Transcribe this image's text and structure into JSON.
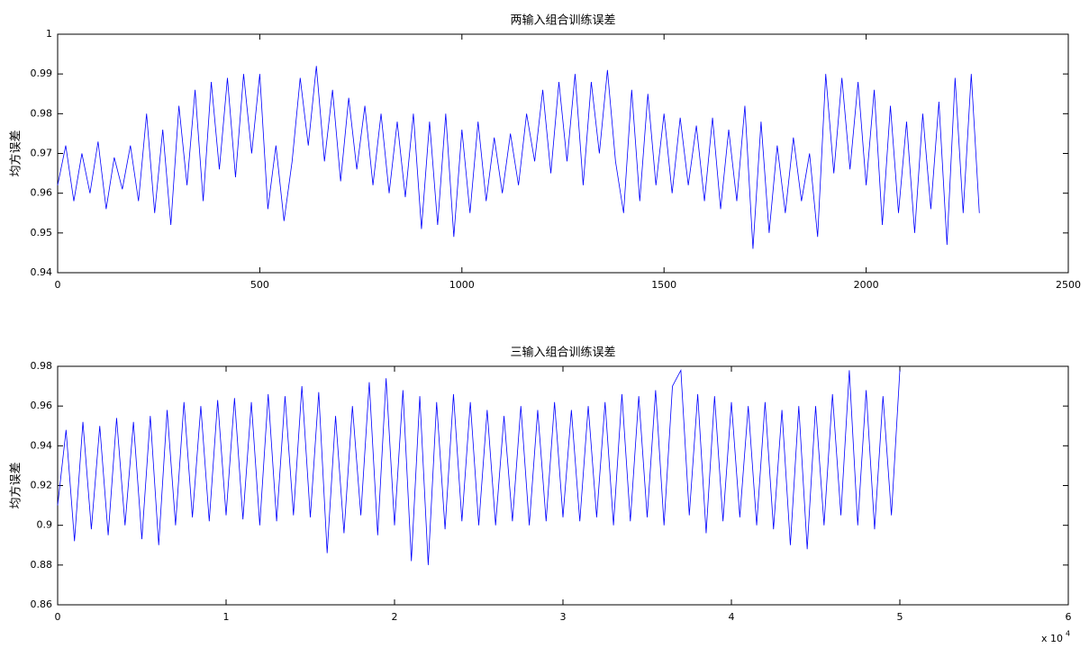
{
  "chart_data": [
    {
      "type": "line",
      "title": "两输入组合训练误差",
      "y_label": "均方误差",
      "color": "#0000ff",
      "x": [
        0,
        20,
        40,
        60,
        80,
        100,
        120,
        140,
        160,
        180,
        200,
        220,
        240,
        260,
        280,
        300,
        320,
        340,
        360,
        380,
        400,
        420,
        440,
        460,
        480,
        500,
        520,
        540,
        560,
        580,
        600,
        620,
        640,
        660,
        680,
        700,
        720,
        740,
        760,
        780,
        800,
        820,
        840,
        860,
        880,
        900,
        920,
        940,
        960,
        980,
        1000,
        1020,
        1040,
        1060,
        1080,
        1100,
        1120,
        1140,
        1160,
        1180,
        1200,
        1220,
        1240,
        1260,
        1280,
        1300,
        1320,
        1340,
        1360,
        1380,
        1400,
        1420,
        1440,
        1460,
        1480,
        1500,
        1520,
        1540,
        1560,
        1580,
        1600,
        1620,
        1640,
        1660,
        1680,
        1700,
        1720,
        1740,
        1760,
        1780,
        1800,
        1820,
        1840,
        1860,
        1880,
        1900,
        1920,
        1940,
        1960,
        1980,
        2000,
        2020,
        2040,
        2060,
        2080,
        2100,
        2120,
        2140,
        2160,
        2180,
        2200,
        2220,
        2240,
        2260,
        2280
      ],
      "values": [
        0.962,
        0.972,
        0.958,
        0.97,
        0.96,
        0.973,
        0.956,
        0.969,
        0.961,
        0.972,
        0.958,
        0.98,
        0.955,
        0.976,
        0.952,
        0.982,
        0.962,
        0.986,
        0.958,
        0.988,
        0.966,
        0.989,
        0.964,
        0.99,
        0.97,
        0.99,
        0.956,
        0.972,
        0.953,
        0.968,
        0.989,
        0.972,
        0.992,
        0.968,
        0.986,
        0.963,
        0.984,
        0.966,
        0.982,
        0.962,
        0.98,
        0.96,
        0.978,
        0.959,
        0.98,
        0.951,
        0.978,
        0.952,
        0.98,
        0.949,
        0.976,
        0.955,
        0.978,
        0.958,
        0.974,
        0.96,
        0.975,
        0.962,
        0.98,
        0.968,
        0.986,
        0.965,
        0.988,
        0.968,
        0.99,
        0.962,
        0.988,
        0.97,
        0.991,
        0.968,
        0.955,
        0.986,
        0.958,
        0.985,
        0.962,
        0.98,
        0.96,
        0.979,
        0.962,
        0.977,
        0.958,
        0.979,
        0.956,
        0.976,
        0.958,
        0.982,
        0.946,
        0.978,
        0.95,
        0.972,
        0.955,
        0.974,
        0.958,
        0.97,
        0.949,
        0.99,
        0.965,
        0.989,
        0.966,
        0.988,
        0.962,
        0.986,
        0.952,
        0.982,
        0.955,
        0.978,
        0.95,
        0.98,
        0.956,
        0.983,
        0.947,
        0.989,
        0.955,
        0.99,
        0.955
      ],
      "xlim": [
        0,
        2500
      ],
      "xticks": [
        0,
        500,
        1000,
        1500,
        2000,
        2500
      ],
      "ylim": [
        0.94,
        1
      ],
      "yticks": [
        0.94,
        0.95,
        0.96,
        0.97,
        0.98,
        0.99,
        1
      ]
    },
    {
      "type": "line",
      "title": "三输入组合训练误差",
      "y_label": "均方误差",
      "color": "#0000ff",
      "x_multiplier": "x 10",
      "x_multiplier_exp": "4",
      "x": [
        0,
        500,
        1000,
        1500,
        2000,
        2500,
        3000,
        3500,
        4000,
        4500,
        5000,
        5500,
        6000,
        6500,
        7000,
        7500,
        8000,
        8500,
        9000,
        9500,
        10000,
        10500,
        11000,
        11500,
        12000,
        12500,
        13000,
        13500,
        14000,
        14500,
        15000,
        15500,
        16000,
        16500,
        17000,
        17500,
        18000,
        18500,
        19000,
        19500,
        20000,
        20500,
        21000,
        21500,
        22000,
        22500,
        23000,
        23500,
        24000,
        24500,
        25000,
        25500,
        26000,
        26500,
        27000,
        27500,
        28000,
        28500,
        29000,
        29500,
        30000,
        30500,
        31000,
        31500,
        32000,
        32500,
        33000,
        33500,
        34000,
        34500,
        35000,
        35500,
        36000,
        36500,
        37000,
        37500,
        38000,
        38500,
        39000,
        39500,
        40000,
        40500,
        41000,
        41500,
        42000,
        42500,
        43000,
        43500,
        44000,
        44500,
        45000,
        45500,
        46000,
        46500,
        47000,
        47500,
        48000,
        48500,
        49000,
        49500,
        50000
      ],
      "values": [
        0.91,
        0.948,
        0.892,
        0.952,
        0.898,
        0.95,
        0.895,
        0.954,
        0.9,
        0.952,
        0.893,
        0.955,
        0.89,
        0.958,
        0.9,
        0.962,
        0.904,
        0.96,
        0.902,
        0.963,
        0.905,
        0.964,
        0.903,
        0.962,
        0.9,
        0.966,
        0.902,
        0.965,
        0.905,
        0.97,
        0.904,
        0.967,
        0.886,
        0.955,
        0.896,
        0.96,
        0.905,
        0.972,
        0.895,
        0.974,
        0.9,
        0.968,
        0.882,
        0.965,
        0.88,
        0.962,
        0.898,
        0.966,
        0.902,
        0.962,
        0.9,
        0.958,
        0.9,
        0.955,
        0.902,
        0.96,
        0.9,
        0.958,
        0.902,
        0.962,
        0.904,
        0.958,
        0.902,
        0.96,
        0.904,
        0.962,
        0.9,
        0.966,
        0.902,
        0.965,
        0.904,
        0.968,
        0.9,
        0.97,
        0.978,
        0.905,
        0.966,
        0.896,
        0.965,
        0.902,
        0.962,
        0.904,
        0.96,
        0.9,
        0.962,
        0.898,
        0.958,
        0.89,
        0.96,
        0.888,
        0.96,
        0.9,
        0.966,
        0.905,
        0.978,
        0.9,
        0.968,
        0.898,
        0.965,
        0.905,
        0.978
      ],
      "xlim": [
        0,
        60000
      ],
      "xticks": [
        {
          "value": 0,
          "label": "0"
        },
        {
          "value": 10000,
          "label": "1"
        },
        {
          "value": 20000,
          "label": "2"
        },
        {
          "value": 30000,
          "label": "3"
        },
        {
          "value": 40000,
          "label": "4"
        },
        {
          "value": 50000,
          "label": "5"
        },
        {
          "value": 60000,
          "label": "6"
        }
      ],
      "ylim": [
        0.86,
        0.98
      ],
      "yticks": [
        0.86,
        0.88,
        0.9,
        0.92,
        0.94,
        0.96,
        0.98
      ]
    }
  ]
}
